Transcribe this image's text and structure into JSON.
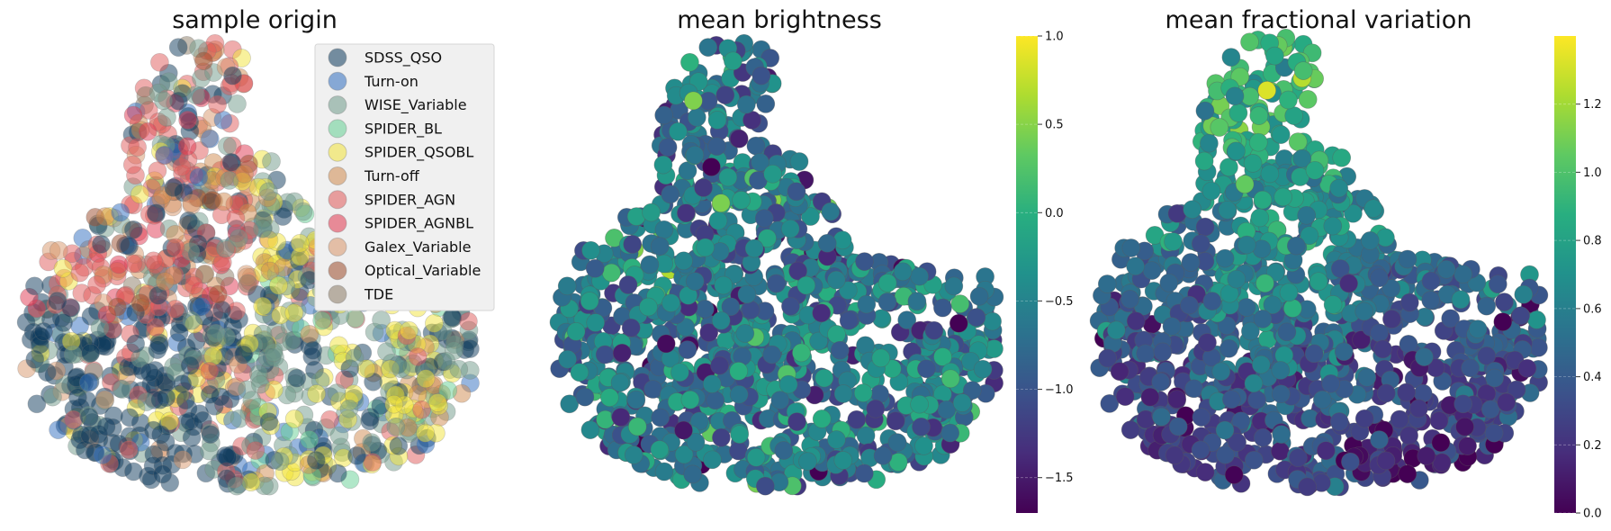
{
  "chart_data": [
    {
      "type": "scatter",
      "title": "sample origin",
      "grid": false,
      "legend_position": "top-right",
      "legend": [
        {
          "name": "SDSS_QSO",
          "color": "#0d3a5c"
        },
        {
          "name": "Turn-on",
          "color": "#2f6ec0"
        },
        {
          "name": "WISE_Variable",
          "color": "#6f9a8a"
        },
        {
          "name": "SPIDER_BL",
          "color": "#64cf94"
        },
        {
          "name": "SPIDER_QSOBL",
          "color": "#f2e43a"
        },
        {
          "name": "Turn-off",
          "color": "#d08a4e"
        },
        {
          "name": "SPIDER_AGN",
          "color": "#e05a5a"
        },
        {
          "name": "SPIDER_AGNBL",
          "color": "#e0364f"
        },
        {
          "name": "Galex_Variable",
          "color": "#d8966a"
        },
        {
          "name": "Optical_Variable",
          "color": "#9a4a2a"
        },
        {
          "name": "TDE",
          "color": "#8a7a64"
        }
      ]
    },
    {
      "type": "scatter",
      "title": "mean brightness",
      "grid": false,
      "colormap": "viridis",
      "colorbar": {
        "range": [
          -1.7,
          1.0
        ],
        "ticks": [
          1.0,
          0.5,
          0.0,
          -0.5,
          -1.0,
          -1.5
        ],
        "tick_labels": [
          "1.0",
          "0.5",
          "0.0",
          "−0.5",
          "−1.0",
          "−1.5"
        ]
      }
    },
    {
      "type": "scatter",
      "title": "mean fractional variation",
      "grid": false,
      "colormap": "viridis",
      "colorbar": {
        "range": [
          0.0,
          1.4
        ],
        "ticks": [
          1.2,
          1.0,
          0.8,
          0.6,
          0.4,
          0.2,
          0.0
        ],
        "tick_labels": [
          "1.2",
          "1.0",
          "0.8",
          "0.6",
          "0.4",
          "0.2",
          "0.0"
        ]
      }
    }
  ]
}
